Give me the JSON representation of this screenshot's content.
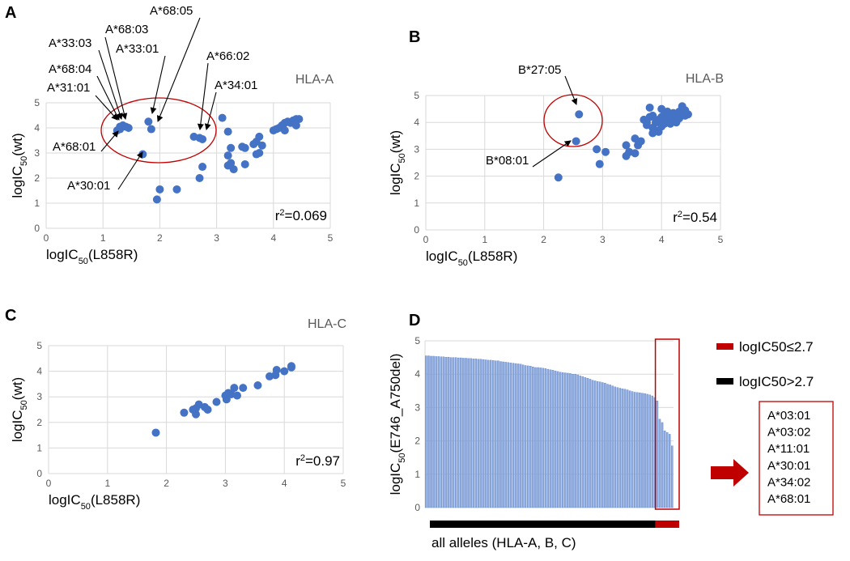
{
  "colors": {
    "point": "#4472c4",
    "bar": "#8faadc",
    "highlight": "#c00000",
    "black": "#000000",
    "grid": "#d9d9d9"
  },
  "chart_data": [
    {
      "panel": "A",
      "type": "scatter",
      "group_label": "HLA-A",
      "xlabel": {
        "pre": "logIC",
        "sub": "50",
        "post": "(L858R)"
      },
      "ylabel": {
        "pre": "logIC",
        "sub": "50",
        "post": "(wt)"
      },
      "xlim": [
        0,
        5
      ],
      "ylim": [
        0,
        5
      ],
      "xticks": [
        "0",
        "1",
        "2",
        "3",
        "4",
        "5"
      ],
      "yticks": [
        "0",
        "1",
        "2",
        "3",
        "4",
        "5"
      ],
      "grid": true,
      "r2": {
        "pre": "r",
        "sup": "2",
        "post": "=0.069"
      },
      "annotations": [
        "A*68:05",
        "A*68:03",
        "A*33:03",
        "A*33:01",
        "A*68:04",
        "A*31:01",
        "A*66:02",
        "A*34:01",
        "A*68:01",
        "A*30:01"
      ],
      "points": [
        [
          1.3,
          4.05
        ],
        [
          1.3,
          3.95
        ],
        [
          1.35,
          4.1
        ],
        [
          1.4,
          4.05
        ],
        [
          1.25,
          3.9
        ],
        [
          1.45,
          4.0
        ],
        [
          1.8,
          4.25
        ],
        [
          1.85,
          3.95
        ],
        [
          1.7,
          2.95
        ],
        [
          2.6,
          3.65
        ],
        [
          2.7,
          3.6
        ],
        [
          2.75,
          3.55
        ],
        [
          3.1,
          4.4
        ],
        [
          3.2,
          3.85
        ],
        [
          3.25,
          3.2
        ],
        [
          3.2,
          2.9
        ],
        [
          3.2,
          2.5
        ],
        [
          3.25,
          2.6
        ],
        [
          3.3,
          2.35
        ],
        [
          3.45,
          3.25
        ],
        [
          3.5,
          3.2
        ],
        [
          3.5,
          2.55
        ],
        [
          3.65,
          3.35
        ],
        [
          3.7,
          3.45
        ],
        [
          3.75,
          3.65
        ],
        [
          3.8,
          3.3
        ],
        [
          3.7,
          2.95
        ],
        [
          3.75,
          3.0
        ],
        [
          2.75,
          2.45
        ],
        [
          2.7,
          2.0
        ],
        [
          2.0,
          1.55
        ],
        [
          1.95,
          1.15
        ],
        [
          2.3,
          1.55
        ],
        [
          4.0,
          3.9
        ],
        [
          4.05,
          3.95
        ],
        [
          4.1,
          4.0
        ],
        [
          4.15,
          4.1
        ],
        [
          4.2,
          4.2
        ],
        [
          4.2,
          3.9
        ],
        [
          4.25,
          4.25
        ],
        [
          4.3,
          4.2
        ],
        [
          4.35,
          4.3
        ],
        [
          4.4,
          4.35
        ],
        [
          4.4,
          4.1
        ],
        [
          4.45,
          4.35
        ]
      ]
    },
    {
      "panel": "B",
      "type": "scatter",
      "group_label": "HLA-B",
      "xlabel": {
        "pre": "logIC",
        "sub": "50",
        "post": "(L858R)"
      },
      "ylabel": {
        "pre": "logIC",
        "sub": "50",
        "post": "(wt)"
      },
      "xlim": [
        0,
        5
      ],
      "ylim": [
        0,
        5
      ],
      "xticks": [
        "0",
        "1",
        "2",
        "3",
        "4",
        "5"
      ],
      "yticks": [
        "0",
        "1",
        "2",
        "3",
        "4",
        "5"
      ],
      "grid": true,
      "r2": {
        "pre": "r",
        "sup": "2",
        "post": "=0.54"
      },
      "annotations": [
        "B*27:05",
        "B*08:01"
      ],
      "points": [
        [
          2.6,
          4.3
        ],
        [
          2.55,
          3.3
        ],
        [
          2.25,
          1.95
        ],
        [
          2.9,
          3.0
        ],
        [
          3.05,
          2.9
        ],
        [
          2.95,
          2.45
        ],
        [
          3.4,
          3.15
        ],
        [
          3.4,
          2.75
        ],
        [
          3.45,
          2.9
        ],
        [
          3.55,
          3.4
        ],
        [
          3.55,
          2.85
        ],
        [
          3.65,
          3.3
        ],
        [
          3.6,
          3.15
        ],
        [
          3.8,
          4.55
        ],
        [
          4.0,
          4.5
        ],
        [
          4.35,
          4.6
        ],
        [
          3.7,
          4.1
        ],
        [
          3.75,
          3.9
        ],
        [
          3.8,
          4.2
        ],
        [
          3.85,
          3.8
        ],
        [
          3.9,
          4.0
        ],
        [
          3.9,
          3.7
        ],
        [
          3.95,
          4.1
        ],
        [
          4.0,
          3.85
        ],
        [
          4.0,
          4.2
        ],
        [
          4.05,
          3.95
        ],
        [
          4.05,
          4.3
        ],
        [
          4.1,
          4.05
        ],
        [
          4.1,
          4.4
        ],
        [
          4.15,
          4.2
        ],
        [
          4.15,
          3.95
        ],
        [
          4.2,
          4.1
        ],
        [
          4.2,
          4.35
        ],
        [
          4.25,
          4.25
        ],
        [
          4.3,
          4.15
        ],
        [
          4.3,
          4.4
        ],
        [
          4.35,
          4.3
        ],
        [
          4.4,
          4.25
        ],
        [
          4.45,
          4.3
        ],
        [
          3.85,
          3.6
        ],
        [
          3.95,
          3.65
        ],
        [
          4.25,
          4.0
        ],
        [
          4.4,
          4.45
        ],
        [
          3.75,
          4.0
        ],
        [
          3.85,
          4.25
        ]
      ]
    },
    {
      "panel": "C",
      "type": "scatter",
      "group_label": "HLA-C",
      "xlabel": {
        "pre": "logIC",
        "sub": "50",
        "post": "(L858R)"
      },
      "ylabel": {
        "pre": "logIC",
        "sub": "50",
        "post": "(wt)"
      },
      "xlim": [
        0,
        5
      ],
      "ylim": [
        0,
        5
      ],
      "xticks": [
        "0",
        "1",
        "2",
        "3",
        "4",
        "5"
      ],
      "yticks": [
        "0",
        "1",
        "2",
        "3",
        "4",
        "5"
      ],
      "grid": true,
      "r2": {
        "pre": "r",
        "sup": "2",
        "post": "=0.97"
      },
      "points": [
        [
          1.82,
          1.6
        ],
        [
          2.3,
          2.38
        ],
        [
          2.45,
          2.5
        ],
        [
          2.5,
          2.55
        ],
        [
          2.55,
          2.7
        ],
        [
          2.5,
          2.32
        ],
        [
          2.65,
          2.6
        ],
        [
          2.7,
          2.5
        ],
        [
          2.85,
          2.8
        ],
        [
          3.0,
          3.05
        ],
        [
          3.02,
          2.9
        ],
        [
          3.05,
          3.15
        ],
        [
          3.1,
          3.1
        ],
        [
          3.15,
          3.35
        ],
        [
          3.2,
          3.05
        ],
        [
          3.3,
          3.35
        ],
        [
          3.55,
          3.45
        ],
        [
          3.75,
          3.8
        ],
        [
          3.85,
          3.85
        ],
        [
          3.87,
          4.05
        ],
        [
          4.0,
          4.0
        ],
        [
          4.12,
          4.2
        ],
        [
          4.12,
          4.15
        ]
      ]
    },
    {
      "panel": "D",
      "type": "bar",
      "ylabel": {
        "pre": "logIC",
        "sub": "50",
        "post": "(E746_A750del)"
      },
      "xlabel": "all alleles (HLA-A, B, C)",
      "ylim": [
        0,
        5
      ],
      "yticks": [
        "0",
        "1",
        "2",
        "3",
        "4",
        "5"
      ],
      "grid": true,
      "threshold": 2.7,
      "legend": [
        {
          "label": "logIC50≤2.7",
          "color": "#c00000"
        },
        {
          "label": "logIC50>2.7",
          "color": "#000000"
        }
      ],
      "highlighted_alleles": [
        "A*03:01",
        "A*03:02",
        "A*11:01",
        "A*30:01",
        "A*34:02",
        "A*68:01"
      ],
      "values": [
        4.55,
        4.55,
        4.54,
        4.54,
        4.53,
        4.53,
        4.52,
        4.52,
        4.51,
        4.51,
        4.5,
        4.5,
        4.5,
        4.49,
        4.49,
        4.48,
        4.48,
        4.47,
        4.47,
        4.46,
        4.46,
        4.45,
        4.45,
        4.44,
        4.43,
        4.42,
        4.42,
        4.41,
        4.4,
        4.4,
        4.38,
        4.37,
        4.36,
        4.35,
        4.34,
        4.33,
        4.32,
        4.31,
        4.3,
        4.28,
        4.26,
        4.25,
        4.24,
        4.22,
        4.2,
        4.2,
        4.19,
        4.18,
        4.17,
        4.15,
        4.13,
        4.12,
        4.1,
        4.08,
        4.06,
        4.05,
        4.04,
        4.03,
        4.02,
        4.0,
        4.0,
        3.98,
        3.95,
        3.93,
        3.9,
        3.88,
        3.85,
        3.82,
        3.8,
        3.78,
        3.77,
        3.75,
        3.73,
        3.7,
        3.68,
        3.65,
        3.62,
        3.6,
        3.58,
        3.56,
        3.55,
        3.53,
        3.5,
        3.48,
        3.46,
        3.45,
        3.44,
        3.43,
        3.42,
        3.4,
        3.38,
        3.35,
        3.3,
        3.2,
        2.65,
        2.55,
        2.3,
        2.25,
        2.2,
        1.85
      ]
    }
  ]
}
